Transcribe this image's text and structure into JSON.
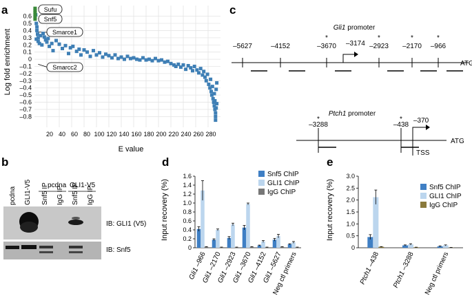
{
  "panels": {
    "a": {
      "label": "a",
      "chart_data": {
        "type": "scatter",
        "xlabel": "E value",
        "ylabel": "Log fold enrichment",
        "xlim": [
          0,
          300
        ],
        "ylim": [
          -0.95,
          0.75
        ],
        "x_ticks": [
          20,
          40,
          60,
          80,
          100,
          120,
          140,
          160,
          180,
          200,
          220,
          240,
          260,
          280
        ],
        "y_ticks": [
          0.6,
          0.5,
          0.4,
          0.3,
          0.2,
          0.1,
          0,
          -0.1,
          -0.2,
          -0.3,
          -0.4,
          -0.5,
          -0.6,
          -0.7,
          -0.8
        ],
        "y_tick_labels": [
          "0.6",
          "0.5",
          "0.4",
          "0.3",
          "0.2",
          "0.1",
          "0",
          "–0.1",
          "–0.2",
          "–0.3",
          "–0.4",
          "–0.5",
          "–0.6",
          "–0.7",
          "–0.8"
        ],
        "highlight_color": "#3a8a3a",
        "point_color": "#3f7fb5",
        "highlighted_points": [
          {
            "x": 1,
            "y": 0.71
          },
          {
            "x": 1,
            "y": 0.68
          },
          {
            "x": 1,
            "y": 0.65
          },
          {
            "x": 1,
            "y": 0.62
          },
          {
            "x": 1,
            "y": 0.59
          },
          {
            "x": 1,
            "y": 0.56
          }
        ],
        "points": [
          {
            "x": 2,
            "y": 0.62
          },
          {
            "x": 3,
            "y": 0.5
          },
          {
            "x": 4,
            "y": 0.45
          },
          {
            "x": 4,
            "y": 0.4
          },
          {
            "x": 5,
            "y": 0.35
          },
          {
            "x": 6,
            "y": 0.3
          },
          {
            "x": 3,
            "y": 0.28
          },
          {
            "x": 6,
            "y": 0.25
          },
          {
            "x": 8,
            "y": 0.22
          },
          {
            "x": 10,
            "y": 0.33
          },
          {
            "x": 12,
            "y": 0.2
          },
          {
            "x": 14,
            "y": 0.36
          },
          {
            "x": 16,
            "y": 0.31
          },
          {
            "x": 18,
            "y": 0.27
          },
          {
            "x": 20,
            "y": 0.24
          },
          {
            "x": 22,
            "y": 0.29
          },
          {
            "x": 24,
            "y": 0.18
          },
          {
            "x": 28,
            "y": 0.22
          },
          {
            "x": 30,
            "y": 0.12
          },
          {
            "x": 35,
            "y": 0.26
          },
          {
            "x": 40,
            "y": 0.21
          },
          {
            "x": 45,
            "y": 0.15
          },
          {
            "x": 50,
            "y": 0.19
          },
          {
            "x": 55,
            "y": 0.08
          },
          {
            "x": 58,
            "y": 0.16
          },
          {
            "x": 62,
            "y": 0.18
          },
          {
            "x": 68,
            "y": 0.11
          },
          {
            "x": 72,
            "y": 0.14
          },
          {
            "x": 75,
            "y": 0.06
          },
          {
            "x": 80,
            "y": 0.13
          },
          {
            "x": 85,
            "y": 0.1
          },
          {
            "x": 90,
            "y": 0.04
          },
          {
            "x": 95,
            "y": 0.12
          },
          {
            "x": 100,
            "y": 0.06
          },
          {
            "x": 105,
            "y": 0.09
          },
          {
            "x": 110,
            "y": 0.03
          },
          {
            "x": 115,
            "y": 0.07
          },
          {
            "x": 120,
            "y": 0.05
          },
          {
            "x": 125,
            "y": 0.02
          },
          {
            "x": 130,
            "y": 0.06
          },
          {
            "x": 135,
            "y": 0.01
          },
          {
            "x": 140,
            "y": 0.03
          },
          {
            "x": 145,
            "y": 0.0
          },
          {
            "x": 150,
            "y": 0.04
          },
          {
            "x": 155,
            "y": 0.01
          },
          {
            "x": 160,
            "y": 0.02
          },
          {
            "x": 165,
            "y": 0.0
          },
          {
            "x": 170,
            "y": -0.01
          },
          {
            "x": 175,
            "y": 0.02
          },
          {
            "x": 180,
            "y": -0.01
          },
          {
            "x": 185,
            "y": 0.0
          },
          {
            "x": 190,
            "y": -0.02
          },
          {
            "x": 195,
            "y": 0.01
          },
          {
            "x": 200,
            "y": -0.02
          },
          {
            "x": 205,
            "y": -0.01
          },
          {
            "x": 210,
            "y": -0.04
          },
          {
            "x": 215,
            "y": -0.03
          },
          {
            "x": 220,
            "y": -0.06
          },
          {
            "x": 225,
            "y": -0.08
          },
          {
            "x": 228,
            "y": -0.1
          },
          {
            "x": 232,
            "y": -0.07
          },
          {
            "x": 236,
            "y": -0.11
          },
          {
            "x": 240,
            "y": -0.08
          },
          {
            "x": 244,
            "y": -0.14
          },
          {
            "x": 248,
            "y": -0.09
          },
          {
            "x": 252,
            "y": -0.12
          },
          {
            "x": 255,
            "y": -0.16
          },
          {
            "x": 258,
            "y": -0.1
          },
          {
            "x": 262,
            "y": -0.15
          },
          {
            "x": 265,
            "y": -0.19
          },
          {
            "x": 268,
            "y": -0.13
          },
          {
            "x": 271,
            "y": -0.22
          },
          {
            "x": 273,
            "y": -0.17
          },
          {
            "x": 275,
            "y": -0.25
          },
          {
            "x": 277,
            "y": -0.3
          },
          {
            "x": 279,
            "y": -0.21
          },
          {
            "x": 281,
            "y": -0.35
          },
          {
            "x": 283,
            "y": -0.4
          },
          {
            "x": 284,
            "y": -0.28
          },
          {
            "x": 285,
            "y": -0.45
          },
          {
            "x": 286,
            "y": -0.5
          },
          {
            "x": 287,
            "y": -0.38
          },
          {
            "x": 288,
            "y": -0.55
          },
          {
            "x": 289,
            "y": -0.6
          },
          {
            "x": 290,
            "y": -0.48
          },
          {
            "x": 290,
            "y": -0.65
          },
          {
            "x": 291,
            "y": -0.7
          },
          {
            "x": 291,
            "y": -0.58
          },
          {
            "x": 292,
            "y": -0.75
          },
          {
            "x": 292,
            "y": -0.8
          },
          {
            "x": 292,
            "y": -0.85
          },
          {
            "x": 293,
            "y": -0.68
          },
          {
            "x": 293,
            "y": -0.42
          },
          {
            "x": 294,
            "y": -0.33
          },
          {
            "x": 294,
            "y": -0.62
          }
        ],
        "annotations": [
          {
            "text": "Sufu",
            "x": 6,
            "y": 0.72
          },
          {
            "text": "Snf5",
            "x": 6,
            "y": 0.57
          },
          {
            "text": "Smarce1",
            "x": 6,
            "y": 0.38
          },
          {
            "text": "Smarcc2",
            "x": 6,
            "y": -0.07
          }
        ]
      }
    },
    "b": {
      "label": "b",
      "group_labels": [
        "pcdna",
        "GLI1-V5"
      ],
      "lanes": [
        "pcdna",
        "GLI1-V5",
        "Snf5 IP",
        "IgG IP",
        "Snf5 IP",
        "IgG IP"
      ],
      "blots": [
        {
          "label": "IB: GLI1 (V5)"
        },
        {
          "label": "IB: Snf5"
        }
      ]
    },
    "c": {
      "label": "c",
      "gli1": {
        "title_gene": "Gli1",
        "title_rest": " promoter",
        "sites": [
          {
            "label": "–5627",
            "star": false
          },
          {
            "label": "–4152",
            "star": false
          },
          {
            "label": "–3670",
            "star": true
          },
          {
            "label": "–2923",
            "star": true
          },
          {
            "label": "–2170",
            "star": true
          },
          {
            "label": "–966",
            "star": true
          }
        ],
        "tss_label": "–3174",
        "end_label": "ATG",
        "star_symbol": "*"
      },
      "ptch1": {
        "title_gene": "Ptch1",
        "title_rest": " promoter",
        "sites": [
          {
            "label": "–3288",
            "star": true
          },
          {
            "label": "–438",
            "star": true
          }
        ],
        "tss_pos_label": "–370",
        "end_label": "ATG",
        "tss_label": "TSS",
        "star_symbol": "*"
      }
    },
    "d": {
      "label": "d",
      "chart_data": {
        "type": "bar",
        "ylabel": "Input recovery (%)",
        "ylim": [
          0,
          1.6
        ],
        "y_ticks": [
          0,
          0.2,
          0.4,
          0.6,
          0.8,
          1.0,
          1.2,
          1.4,
          1.6
        ],
        "y_tick_labels": [
          "0",
          "0.2",
          "0.4",
          "0.6",
          "0.8",
          "1.0",
          "1.2",
          "1.4",
          "1.6"
        ],
        "categories": [
          {
            "gene": "Gli1",
            "site": " –966"
          },
          {
            "gene": "Gli1",
            "site": " –2170"
          },
          {
            "gene": "Gli1",
            "site": " –2923"
          },
          {
            "gene": "Gli1",
            "site": " –3670"
          },
          {
            "gene": "Gli1",
            "site": " –4152"
          },
          {
            "gene": "Gli1",
            "site": " –5627"
          },
          {
            "gene": "",
            "site": "Neg ctl primers"
          }
        ],
        "series": [
          {
            "name": "Snf5 ChIP",
            "color": "#3f7fc4",
            "values": [
              0.42,
              0.18,
              0.22,
              0.45,
              0.05,
              0.18,
              0.08
            ],
            "errors": [
              0.05,
              0.02,
              0.03,
              0.05,
              0.01,
              0.03,
              0.01
            ]
          },
          {
            "name": "GLI1 ChIP",
            "color": "#bcd6ee",
            "values": [
              1.28,
              0.4,
              0.52,
              0.98,
              0.14,
              0.26,
              0.12
            ],
            "errors": [
              0.22,
              0.02,
              0.03,
              0.02,
              0.02,
              0.04,
              0.02
            ]
          },
          {
            "name": "IgG ChIP",
            "color": "#777777",
            "values": [
              0.02,
              0.01,
              0.01,
              0.02,
              0.01,
              0.02,
              0.01
            ],
            "errors": [
              0.005,
              0.005,
              0.005,
              0.005,
              0.005,
              0.005,
              0.005
            ]
          }
        ]
      }
    },
    "e": {
      "label": "e",
      "chart_data": {
        "type": "bar",
        "ylabel": "Input recovery (%)",
        "ylim": [
          0,
          3.0
        ],
        "y_ticks": [
          0,
          0.5,
          1.0,
          1.5,
          2.0,
          2.5,
          3.0
        ],
        "y_tick_labels": [
          "0",
          "0.5",
          "1.0",
          "1.5",
          "2.0",
          "2.5",
          "3.0"
        ],
        "categories": [
          {
            "gene": "Ptch1",
            "site": " –438"
          },
          {
            "gene": "Ptch1",
            "site": " –3288"
          },
          {
            "gene": "",
            "site": "Neg ctl primers"
          }
        ],
        "series": [
          {
            "name": "Snf5 ChIP",
            "color": "#3f7fc4",
            "values": [
              0.45,
              0.1,
              0.06
            ],
            "errors": [
              0.1,
              0.02,
              0.02
            ]
          },
          {
            "name": "GLI1 ChIP",
            "color": "#bcd6ee",
            "values": [
              2.12,
              0.14,
              0.1
            ],
            "errors": [
              0.3,
              0.03,
              0.02
            ]
          },
          {
            "name": "IgG ChIP",
            "color": "#8a7a3c",
            "values": [
              0.04,
              0.02,
              0.01
            ],
            "errors": [
              0.01,
              0.005,
              0.005
            ]
          }
        ]
      }
    }
  }
}
